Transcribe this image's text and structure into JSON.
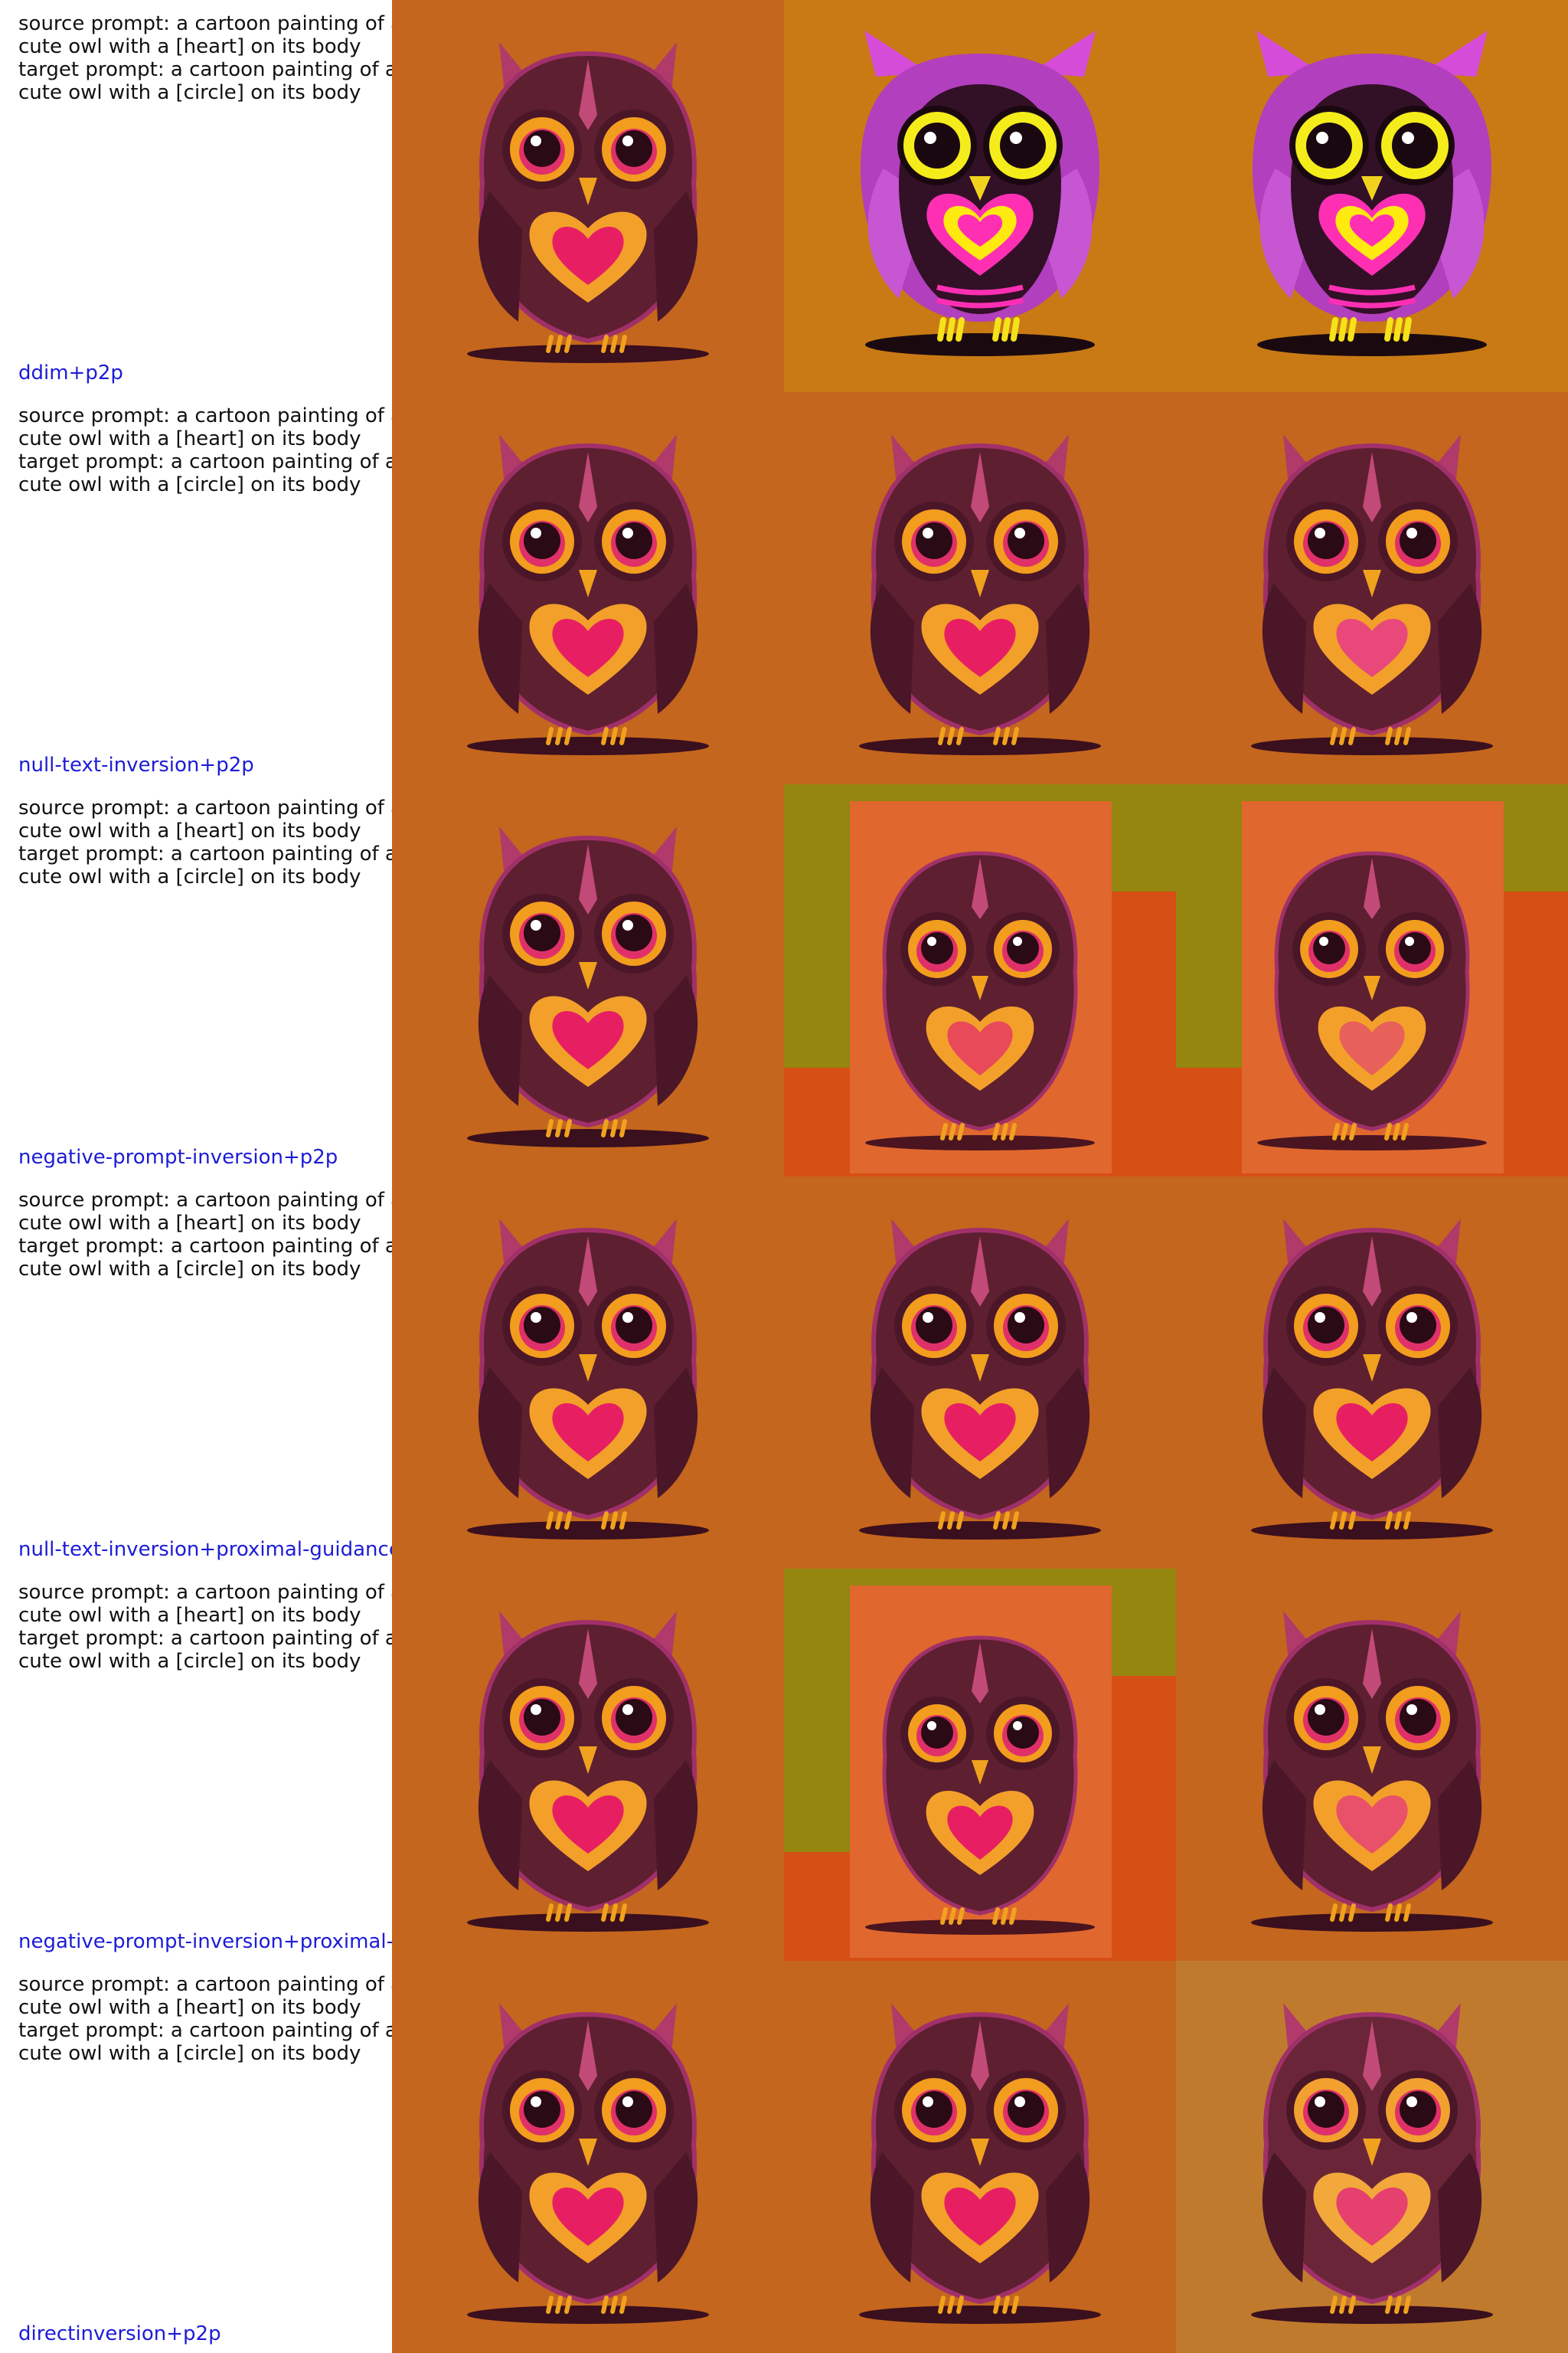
{
  "rows": [
    {
      "source_prompt": "source prompt: a cartoon painting of a",
      "source_prompt_2": "cute owl with a [heart] on its body",
      "target_prompt": "target prompt: a cartoon painting of a",
      "target_prompt_2": "cute owl with a [circle] on its body",
      "method": "ddim+p2p",
      "cells": [
        {
          "style": "fluffy",
          "bg": "#c4661d",
          "bodyFill": "#5e1f30",
          "eyeRing": "#f29d1e",
          "heartOuter": "#f2a02a",
          "heartInner": "#e81e63"
        },
        {
          "style": "flat",
          "bg": "#c97a14",
          "bodyFill": "#321026",
          "eyeRing": "#f5ec1c",
          "heartOuter": "#ffea10",
          "heartInner": "#ff2fb4"
        },
        {
          "style": "flat",
          "bg": "#c97a14",
          "bodyFill": "#321026",
          "eyeRing": "#f5ec1c",
          "heartOuter": "#ffea10",
          "heartInner": "#ff2fb4"
        }
      ]
    },
    {
      "source_prompt": "source prompt: a cartoon painting of a",
      "source_prompt_2": "cute owl with a [heart] on its body",
      "target_prompt": "target prompt: a cartoon painting of a",
      "target_prompt_2": "cute owl with a [circle] on its body",
      "method": "null-text-inversion+p2p",
      "cells": [
        {
          "style": "fluffy",
          "bg": "#c4661d",
          "bodyFill": "#5e1f30",
          "eyeRing": "#f29d1e",
          "heartOuter": "#f2a02a",
          "heartInner": "#e81e63"
        },
        {
          "style": "fluffy",
          "bg": "#c4661d",
          "bodyFill": "#5e1f30",
          "eyeRing": "#f29d1e",
          "heartOuter": "#f2a02a",
          "heartInner": "#e81e63"
        },
        {
          "style": "fluffy",
          "bg": "#c4661d",
          "bodyFill": "#5e1f30",
          "eyeRing": "#f29d1e",
          "heartOuter": "#f2a02a",
          "heartInner": "#e9497a"
        }
      ]
    },
    {
      "source_prompt": "source prompt: a cartoon painting of a",
      "source_prompt_2": "cute owl with a [heart] on its body",
      "target_prompt": "target prompt: a cartoon painting of a",
      "target_prompt_2": "cute owl with a [circle] on its body",
      "method": "negative-prompt-inversion+p2p",
      "cells": [
        {
          "style": "fluffy",
          "bg": "#c4661d",
          "bodyFill": "#5e1f30",
          "eyeRing": "#f29d1e",
          "heartOuter": "#f2a02a",
          "heartInner": "#e81e63"
        },
        {
          "style": "panel",
          "bg": "#d64f14",
          "bodyFill": "#5e1f30",
          "eyeRing": "#f29d1e",
          "heartOuter": "#f2a02a",
          "heartInner": "#e84a5a"
        },
        {
          "style": "panel",
          "bg": "#d64f14",
          "bodyFill": "#5e1f30",
          "eyeRing": "#f29d1e",
          "heartOuter": "#f2a02a",
          "heartInner": "#e8605a"
        }
      ]
    },
    {
      "source_prompt": "source prompt: a cartoon painting of a",
      "source_prompt_2": "cute owl with a [heart] on its body",
      "target_prompt": "target prompt: a cartoon painting of a",
      "target_prompt_2": "cute owl with a [circle] on its body",
      "method": "null-text-inversion+proximal-guidance",
      "cells": [
        {
          "style": "fluffy",
          "bg": "#c4661d",
          "bodyFill": "#5e1f30",
          "eyeRing": "#f29d1e",
          "heartOuter": "#f2a02a",
          "heartInner": "#e81e63"
        },
        {
          "style": "fluffy",
          "bg": "#c4661d",
          "bodyFill": "#5e1f30",
          "eyeRing": "#f29d1e",
          "heartOuter": "#f2a02a",
          "heartInner": "#e81e63"
        },
        {
          "style": "fluffy",
          "bg": "#c4661d",
          "bodyFill": "#5e1f30",
          "eyeRing": "#f29d1e",
          "heartOuter": "#f2a02a",
          "heartInner": "#e81e63"
        }
      ]
    },
    {
      "source_prompt": "source prompt: a cartoon painting of a",
      "source_prompt_2": "cute owl with a [heart] on its body",
      "target_prompt": "target prompt: a cartoon painting of a",
      "target_prompt_2": "cute owl with a [circle] on its body",
      "method": "negative-prompt-inversion+proximal-g",
      "cells": [
        {
          "style": "fluffy",
          "bg": "#c4661d",
          "bodyFill": "#5e1f30",
          "eyeRing": "#f29d1e",
          "heartOuter": "#f2a02a",
          "heartInner": "#e81e63"
        },
        {
          "style": "panel",
          "bg": "#d64f14",
          "bodyFill": "#5e1f30",
          "eyeRing": "#f29d1e",
          "heartOuter": "#f2a02a",
          "heartInner": "#e81e63"
        },
        {
          "style": "fluffy",
          "bg": "#c4661d",
          "bodyFill": "#5e1f30",
          "eyeRing": "#f29d1e",
          "heartOuter": "#f2a02a",
          "heartInner": "#e9506a"
        }
      ]
    },
    {
      "source_prompt": "source prompt: a cartoon painting of a",
      "source_prompt_2": "cute owl with a [heart] on its body",
      "target_prompt": "target prompt: a cartoon painting of a",
      "target_prompt_2": "cute owl with a [circle] on its body",
      "method": "directinversion+p2p",
      "cells": [
        {
          "style": "fluffy",
          "bg": "#c4661d",
          "bodyFill": "#5e1f30",
          "eyeRing": "#f29d1e",
          "heartOuter": "#f2a02a",
          "heartInner": "#e81e63"
        },
        {
          "style": "fluffy",
          "bg": "#c4661d",
          "bodyFill": "#5e1f30",
          "eyeRing": "#f29d1e",
          "heartOuter": "#f2a02a",
          "heartInner": "#e81e63"
        },
        {
          "style": "fluffy",
          "bg": "#c07a2e",
          "bodyFill": "#6a2638",
          "eyeRing": "#f2a030",
          "heartOuter": "#f2a83a",
          "heartInner": "#e6406e"
        }
      ]
    }
  ]
}
